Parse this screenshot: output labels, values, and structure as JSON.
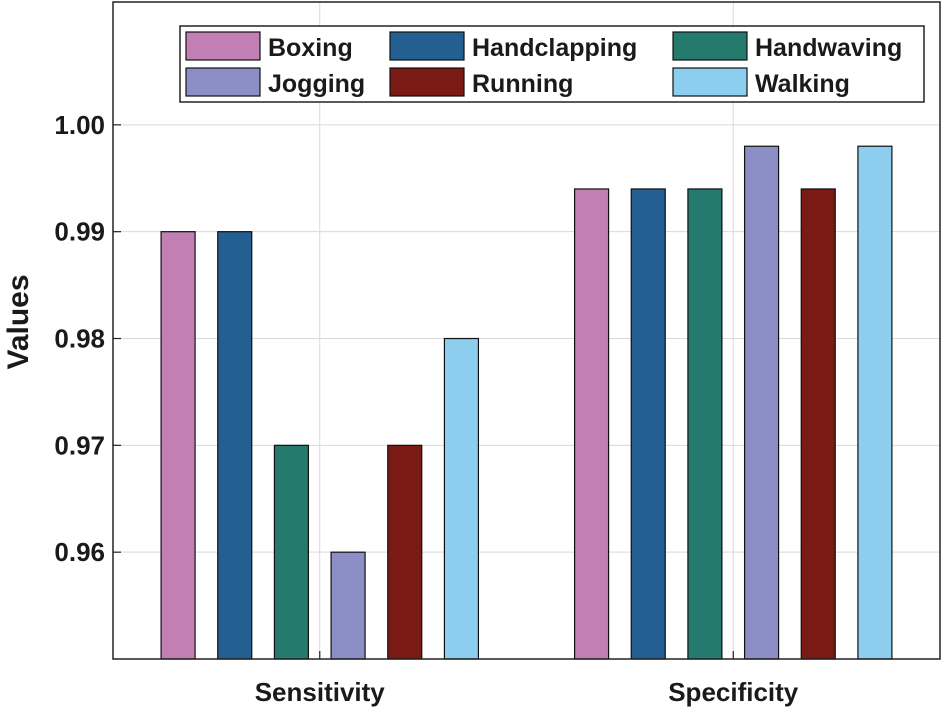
{
  "chart_data": {
    "type": "bar",
    "title": "",
    "xlabel": "",
    "ylabel": "Values",
    "categories": [
      "Sensitivity",
      "Specificity"
    ],
    "series": [
      {
        "name": "Boxing",
        "color": "#c17fb4",
        "values": [
          0.99,
          0.994
        ]
      },
      {
        "name": "Handclapping",
        "color": "#235f91",
        "values": [
          0.99,
          0.994
        ]
      },
      {
        "name": "Handwaving",
        "color": "#247a6c",
        "values": [
          0.97,
          0.994
        ]
      },
      {
        "name": "Jogging",
        "color": "#8b8fc5",
        "values": [
          0.96,
          0.998
        ]
      },
      {
        "name": "Running",
        "color": "#7a1a14",
        "values": [
          0.97,
          0.994
        ]
      },
      {
        "name": "Walking",
        "color": "#8dceee",
        "values": [
          0.98,
          0.998
        ]
      }
    ],
    "ylim": [
      0.95,
      1.0115
    ],
    "yticks": [
      0.96,
      0.97,
      0.98,
      0.99,
      1.0
    ],
    "ytick_labels": [
      "0.96",
      "0.97",
      "0.98",
      "0.99",
      "1.00"
    ],
    "grid": true,
    "legend_position": "top"
  }
}
